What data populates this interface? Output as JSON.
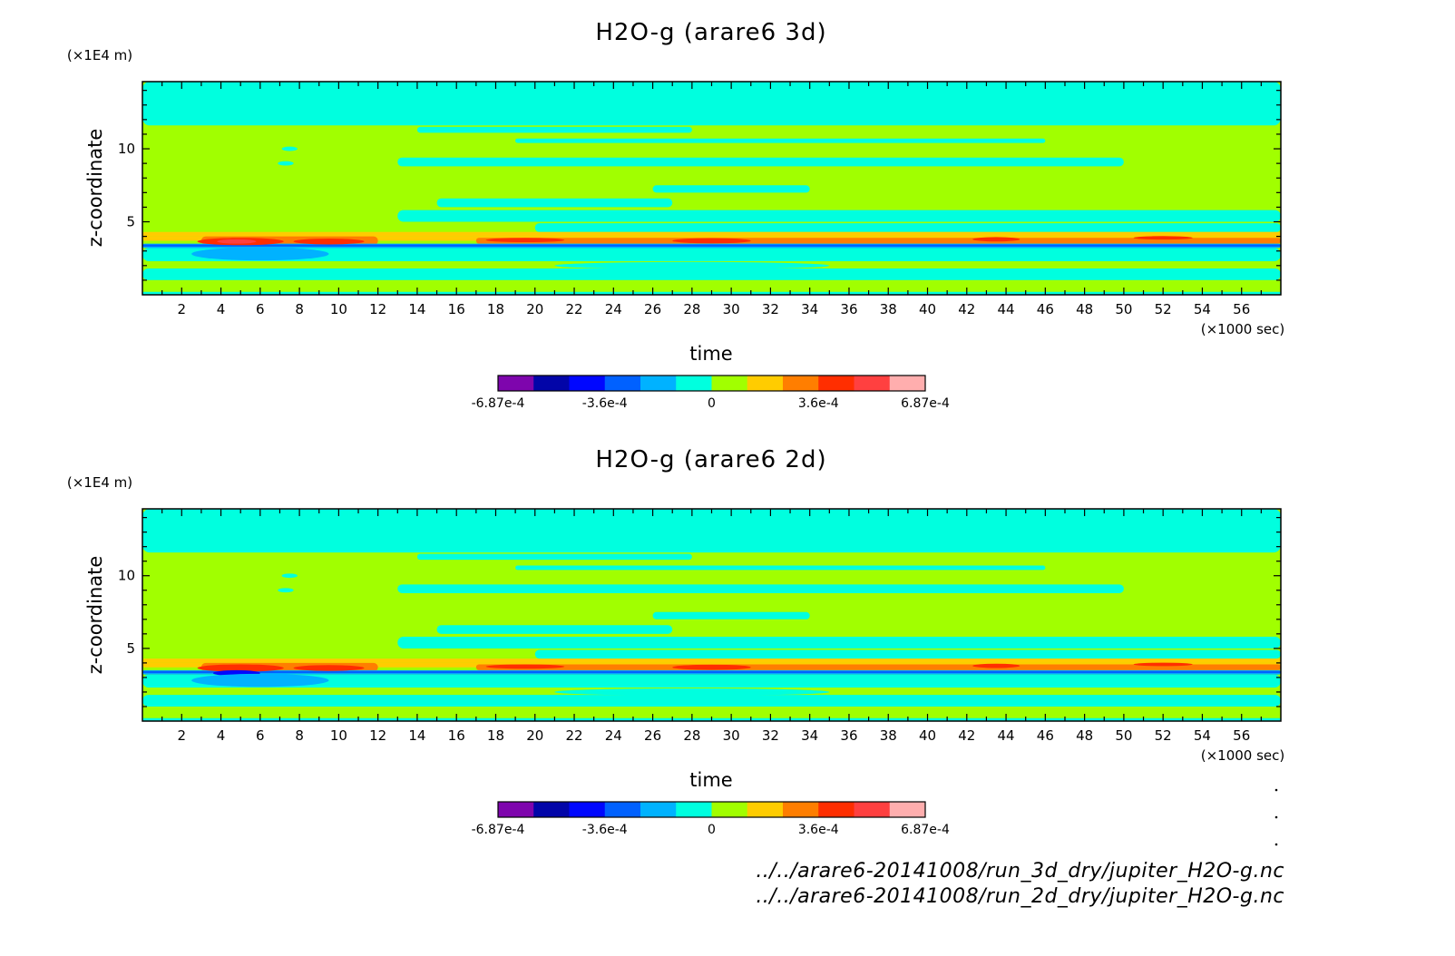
{
  "colors": {
    "levels": [
      "#7e05ad",
      "#0205a8",
      "#0007ff",
      "#0061ff",
      "#00b2ff",
      "#00ffdf",
      "#a1ff00",
      "#ffcc00",
      "#ff7e00",
      "#ff2e00",
      "#ff4040",
      "#ffaeae"
    ],
    "background": "#ffffff"
  },
  "chart_data": [
    {
      "type": "heatmap",
      "title": "H2O-g (arare6 3d)",
      "xlabel": "time",
      "ylabel": "z-coordinate",
      "x_unit": "(×1000 sec)",
      "y_unit": "(×1E4 m)",
      "xlim": [
        0,
        58
      ],
      "ylim": [
        0,
        14.6
      ],
      "x_ticks": [
        2,
        4,
        6,
        8,
        10,
        12,
        14,
        16,
        18,
        20,
        22,
        24,
        26,
        28,
        30,
        32,
        34,
        36,
        38,
        40,
        42,
        44,
        46,
        48,
        50,
        52,
        54,
        56
      ],
      "y_ticks": [
        5,
        10
      ],
      "colorbar": {
        "labels": [
          "-6.87e-4",
          "-3.6e-4",
          "0",
          "3.6e-4",
          "6.87e-4"
        ],
        "label_positions": [
          0,
          3,
          6,
          9,
          12
        ]
      },
      "field": {
        "background_level": 6,
        "bands": [
          {
            "x": [
              0,
              58
            ],
            "z": [
              11.6,
              14.6
            ],
            "level": 5
          },
          {
            "x": [
              14,
              58
            ],
            "z": [
              11.9,
              12.6
            ],
            "level": 5
          },
          {
            "x": [
              14,
              28
            ],
            "z": [
              11.1,
              11.5
            ],
            "level": 5
          },
          {
            "x": [
              19,
              46
            ],
            "z": [
              10.4,
              10.7
            ],
            "level": 5
          },
          {
            "x": [
              13,
              50
            ],
            "z": [
              8.8,
              9.4
            ],
            "level": 5
          },
          {
            "x": [
              26,
              34
            ],
            "z": [
              7.0,
              7.5
            ],
            "level": 5
          },
          {
            "x": [
              15,
              27
            ],
            "z": [
              6.0,
              6.6
            ],
            "level": 5
          },
          {
            "x": [
              13,
              58
            ],
            "z": [
              5.0,
              5.8
            ],
            "level": 5
          },
          {
            "x": [
              20,
              58
            ],
            "z": [
              4.3,
              4.9
            ],
            "level": 5
          },
          {
            "x": [
              0,
              58
            ],
            "z": [
              4.0,
              4.3
            ],
            "level": 7
          },
          {
            "x": [
              0,
              58
            ],
            "z": [
              3.7,
              4.0
            ],
            "level": 7
          },
          {
            "x": [
              3,
              12
            ],
            "z": [
              3.4,
              4.0
            ],
            "level": 8
          },
          {
            "x": [
              17,
              58
            ],
            "z": [
              3.5,
              3.9
            ],
            "level": 8
          },
          {
            "x": [
              0,
              58
            ],
            "z": [
              3.2,
              3.5
            ],
            "level": 4
          },
          {
            "x": [
              0,
              58
            ],
            "z": [
              3.3,
              3.45
            ],
            "level": 3
          },
          {
            "x": [
              0,
              58
            ],
            "z": [
              2.3,
              3.2
            ],
            "level": 5
          },
          {
            "x": [
              0,
              58
            ],
            "z": [
              1.8,
              2.3
            ],
            "level": 6
          },
          {
            "x": [
              0,
              58
            ],
            "z": [
              1.0,
              1.8
            ],
            "level": 5
          },
          {
            "x": [
              0,
              58
            ],
            "z": [
              0.2,
              1.0
            ],
            "level": 6
          },
          {
            "x": [
              0,
              58
            ],
            "z": [
              0.0,
              0.2
            ],
            "level": 5
          }
        ],
        "blobs": [
          {
            "x": 5.0,
            "z": 3.65,
            "rx": 2.2,
            "rz": 0.25,
            "level": 9
          },
          {
            "x": 4.8,
            "z": 3.65,
            "rx": 1.0,
            "rz": 0.15,
            "level": 10
          },
          {
            "x": 9.5,
            "z": 3.65,
            "rx": 1.8,
            "rz": 0.2,
            "level": 9
          },
          {
            "x": 19.5,
            "z": 3.75,
            "rx": 2.0,
            "rz": 0.15,
            "level": 9
          },
          {
            "x": 29.0,
            "z": 3.7,
            "rx": 2.0,
            "rz": 0.18,
            "level": 9
          },
          {
            "x": 43.5,
            "z": 3.8,
            "rx": 1.2,
            "rz": 0.15,
            "level": 9
          },
          {
            "x": 52.0,
            "z": 3.9,
            "rx": 1.5,
            "rz": 0.12,
            "level": 9
          },
          {
            "x": 6.0,
            "z": 2.8,
            "rx": 3.5,
            "rz": 0.45,
            "level": 4
          },
          {
            "x": 7.5,
            "z": 10.0,
            "rx": 0.4,
            "rz": 0.15,
            "level": 5
          },
          {
            "x": 7.3,
            "z": 9.0,
            "rx": 0.4,
            "rz": 0.15,
            "level": 5
          },
          {
            "x": 28.0,
            "z": 2.0,
            "rx": 7.0,
            "rz": 0.25,
            "level": 5
          }
        ]
      }
    },
    {
      "type": "heatmap",
      "title": "H2O-g (arare6 2d)",
      "xlabel": "time",
      "ylabel": "z-coordinate",
      "x_unit": "(×1000 sec)",
      "y_unit": "(×1E4 m)",
      "xlim": [
        0,
        58
      ],
      "ylim": [
        0,
        14.6
      ],
      "x_ticks": [
        2,
        4,
        6,
        8,
        10,
        12,
        14,
        16,
        18,
        20,
        22,
        24,
        26,
        28,
        30,
        32,
        34,
        36,
        38,
        40,
        42,
        44,
        46,
        48,
        50,
        52,
        54,
        56
      ],
      "y_ticks": [
        5,
        10
      ],
      "colorbar": {
        "labels": [
          "-6.87e-4",
          "-3.6e-4",
          "0",
          "3.6e-4",
          "6.87e-4"
        ],
        "label_positions": [
          0,
          3,
          6,
          9,
          12
        ]
      },
      "field": {
        "background_level": 6,
        "bands": [
          {
            "x": [
              0,
              58
            ],
            "z": [
              11.6,
              14.6
            ],
            "level": 5
          },
          {
            "x": [
              14,
              58
            ],
            "z": [
              11.9,
              12.6
            ],
            "level": 5
          },
          {
            "x": [
              14,
              28
            ],
            "z": [
              11.1,
              11.5
            ],
            "level": 5
          },
          {
            "x": [
              19,
              46
            ],
            "z": [
              10.4,
              10.7
            ],
            "level": 5
          },
          {
            "x": [
              13,
              50
            ],
            "z": [
              8.8,
              9.4
            ],
            "level": 5
          },
          {
            "x": [
              26,
              34
            ],
            "z": [
              7.0,
              7.5
            ],
            "level": 5
          },
          {
            "x": [
              15,
              27
            ],
            "z": [
              6.0,
              6.6
            ],
            "level": 5
          },
          {
            "x": [
              13,
              58
            ],
            "z": [
              5.0,
              5.8
            ],
            "level": 5
          },
          {
            "x": [
              20,
              58
            ],
            "z": [
              4.3,
              4.9
            ],
            "level": 5
          },
          {
            "x": [
              0,
              58
            ],
            "z": [
              4.0,
              4.3
            ],
            "level": 7
          },
          {
            "x": [
              0,
              58
            ],
            "z": [
              3.7,
              4.0
            ],
            "level": 7
          },
          {
            "x": [
              3,
              12
            ],
            "z": [
              3.4,
              4.0
            ],
            "level": 8
          },
          {
            "x": [
              17,
              58
            ],
            "z": [
              3.5,
              3.9
            ],
            "level": 8
          },
          {
            "x": [
              0,
              58
            ],
            "z": [
              3.2,
              3.5
            ],
            "level": 4
          },
          {
            "x": [
              0,
              58
            ],
            "z": [
              3.3,
              3.45
            ],
            "level": 3
          },
          {
            "x": [
              0,
              58
            ],
            "z": [
              2.3,
              3.2
            ],
            "level": 5
          },
          {
            "x": [
              0,
              58
            ],
            "z": [
              1.8,
              2.3
            ],
            "level": 6
          },
          {
            "x": [
              0,
              58
            ],
            "z": [
              1.0,
              1.8
            ],
            "level": 5
          },
          {
            "x": [
              0,
              58
            ],
            "z": [
              0.2,
              1.0
            ],
            "level": 6
          },
          {
            "x": [
              0,
              58
            ],
            "z": [
              0.0,
              0.2
            ],
            "level": 5
          }
        ],
        "blobs": [
          {
            "x": 5.0,
            "z": 3.65,
            "rx": 2.2,
            "rz": 0.25,
            "level": 9
          },
          {
            "x": 4.8,
            "z": 3.3,
            "rx": 1.2,
            "rz": 0.2,
            "level": 2
          },
          {
            "x": 9.5,
            "z": 3.65,
            "rx": 1.8,
            "rz": 0.2,
            "level": 9
          },
          {
            "x": 19.5,
            "z": 3.75,
            "rx": 2.0,
            "rz": 0.15,
            "level": 9
          },
          {
            "x": 29.0,
            "z": 3.7,
            "rx": 2.0,
            "rz": 0.18,
            "level": 9
          },
          {
            "x": 43.5,
            "z": 3.8,
            "rx": 1.2,
            "rz": 0.15,
            "level": 9
          },
          {
            "x": 52.0,
            "z": 3.9,
            "rx": 1.5,
            "rz": 0.12,
            "level": 9
          },
          {
            "x": 6.0,
            "z": 2.8,
            "rx": 3.5,
            "rz": 0.45,
            "level": 4
          },
          {
            "x": 7.5,
            "z": 10.0,
            "rx": 0.4,
            "rz": 0.15,
            "level": 5
          },
          {
            "x": 7.3,
            "z": 9.0,
            "rx": 0.4,
            "rz": 0.15,
            "level": 5
          },
          {
            "x": 28.0,
            "z": 2.0,
            "rx": 7.0,
            "rz": 0.25,
            "level": 5
          }
        ]
      }
    }
  ],
  "footer": {
    "file_3d": "../../arare6-20141008/run_3d_dry/jupiter_H2O-g.nc",
    "file_2d": "../../arare6-20141008/run_2d_dry/jupiter_H2O-g.nc"
  }
}
